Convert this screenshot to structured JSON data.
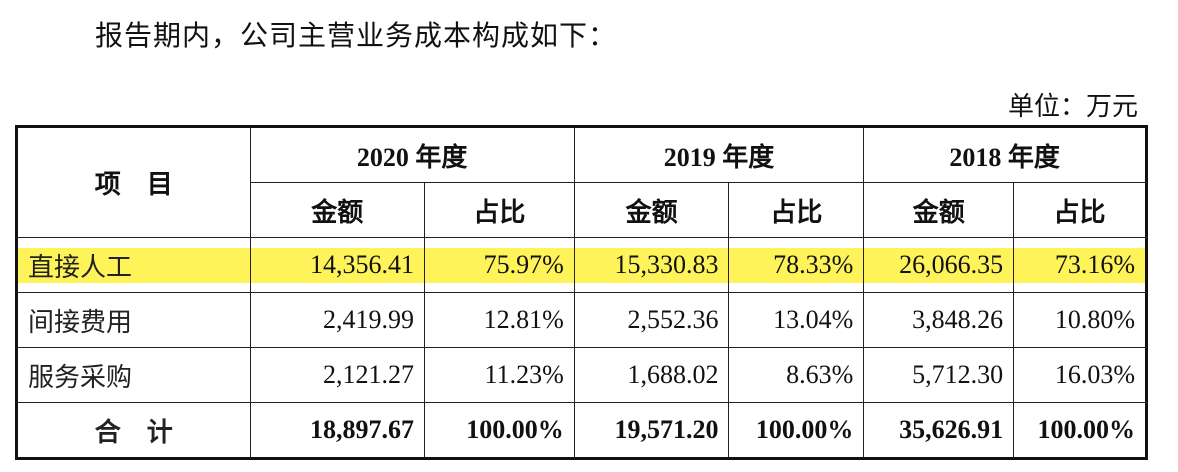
{
  "header": {
    "title": "报告期内，公司主营业务成本构成如下：",
    "unit": "单位：万元"
  },
  "table": {
    "item_header": "项　目",
    "years": [
      "2020 年度",
      "2019 年度",
      "2018 年度"
    ],
    "subheaders": [
      "金额",
      "占比",
      "金额",
      "占比",
      "金额",
      "占比"
    ],
    "rows": [
      {
        "label": "直接人工",
        "cells": [
          "14,356.41",
          "75.97%",
          "15,330.83",
          "78.33%",
          "26,066.35",
          "73.16%"
        ]
      },
      {
        "label": "间接费用",
        "cells": [
          "2,419.99",
          "12.81%",
          "2,552.36",
          "13.04%",
          "3,848.26",
          "10.80%"
        ]
      },
      {
        "label": "服务采购",
        "cells": [
          "2,121.27",
          "11.23%",
          "1,688.02",
          "8.63%",
          "5,712.30",
          "16.03%"
        ]
      },
      {
        "label": "合　计",
        "cells": [
          "18,897.67",
          "100.00%",
          "19,571.20",
          "100.00%",
          "35,626.91",
          "100.00%"
        ]
      }
    ]
  }
}
